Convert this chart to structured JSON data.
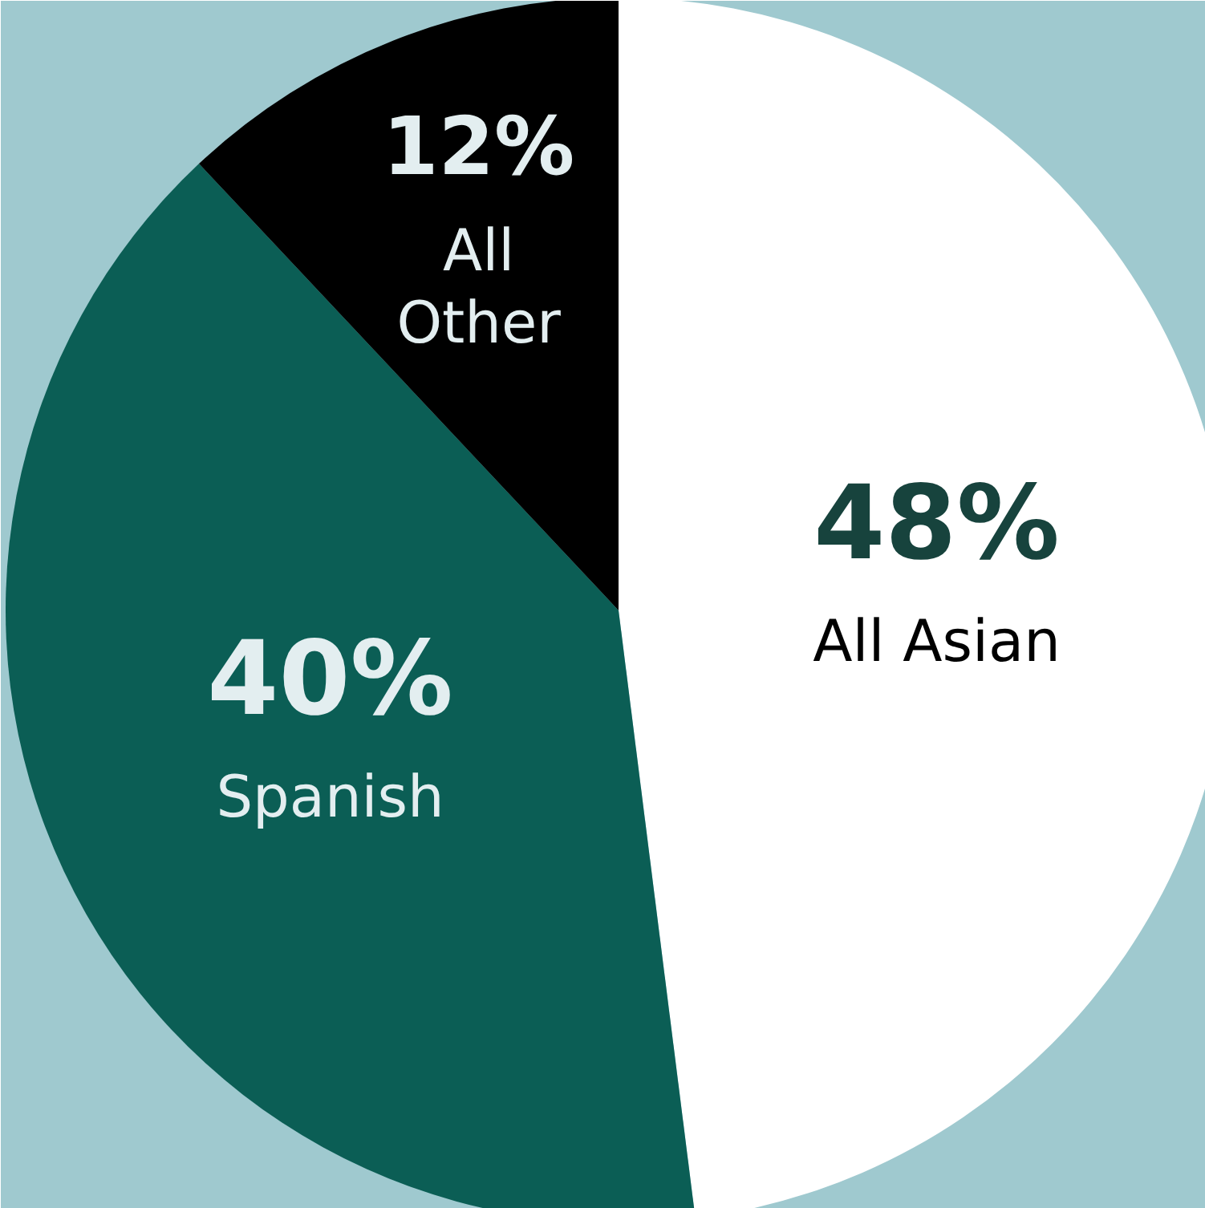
{
  "chart_data": {
    "type": "pie",
    "categories": [
      "All Asian",
      "Spanish",
      "All Other"
    ],
    "values": [
      48,
      40,
      12
    ],
    "value_labels": [
      "48%",
      "40%",
      "12%"
    ],
    "colors": [
      "#ffffff",
      "#0b5e55",
      "#000000"
    ]
  }
}
